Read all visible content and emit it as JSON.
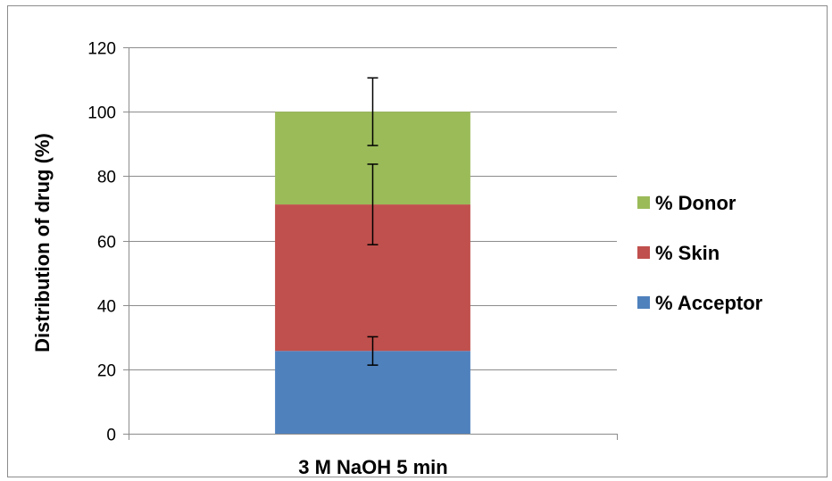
{
  "chart_data": {
    "type": "bar",
    "stacked": true,
    "categories": [
      "3 M NaOH 5 min"
    ],
    "series": [
      {
        "name": "% Acceptor",
        "values": [
          25.7
        ],
        "error": [
          4.4
        ],
        "color": "#4F81BD"
      },
      {
        "name": "% Skin",
        "values": [
          45.5
        ],
        "error": [
          12.5
        ],
        "color": "#C0504D"
      },
      {
        "name": "% Donor",
        "values": [
          28.8
        ],
        "error": [
          10.5
        ],
        "color": "#9BBB59"
      }
    ],
    "xlabel": "3 M NaOH 5 min",
    "ylabel": "Distribution of drug (%)",
    "ylim": [
      0,
      120
    ],
    "yticks": [
      0,
      20,
      40,
      60,
      80,
      100,
      120
    ],
    "grid": true,
    "legend": "right",
    "legend_order": [
      "% Donor",
      "% Skin",
      "% Acceptor"
    ]
  }
}
